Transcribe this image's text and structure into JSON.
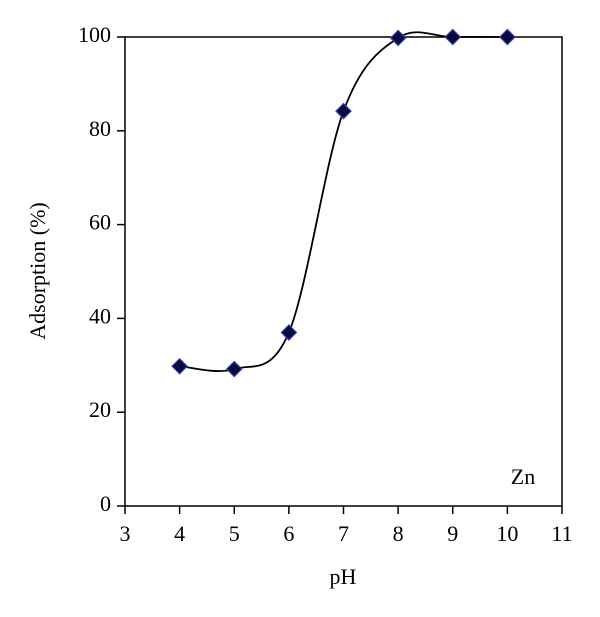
{
  "chart_data": {
    "type": "scatter",
    "x_label": "pH",
    "y_label": "Adsorption (%)",
    "annotation": "Zn",
    "x": [
      4,
      5,
      6,
      7,
      8,
      9,
      10
    ],
    "values": [
      29.8,
      29.2,
      37,
      84.2,
      99.8,
      100,
      100
    ],
    "color": "#0b0b3b",
    "line_color": "#000000",
    "smooth_line": true,
    "xlim": [
      3,
      11
    ],
    "xticks": [
      3,
      4,
      5,
      6,
      7,
      8,
      9,
      10,
      11
    ],
    "ylim": [
      0,
      100
    ],
    "yticks": [
      0,
      20,
      40,
      60,
      80,
      100
    ]
  }
}
